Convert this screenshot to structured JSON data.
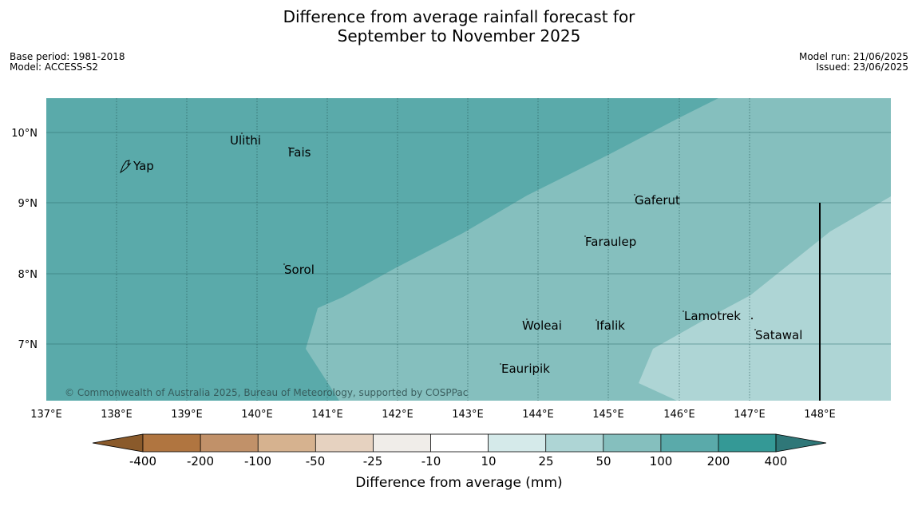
{
  "title": {
    "line1": "Difference from average rainfall forecast for",
    "line2": "September to November 2025"
  },
  "meta": {
    "base_period": "Base period: 1981-2018",
    "model": "Model: ACCESS-S2",
    "model_run": "Model run: 21/06/2025",
    "issued": "Issued: 23/06/2025"
  },
  "map": {
    "lon_labels": [
      "137°E",
      "138°E",
      "139°E",
      "140°E",
      "141°E",
      "142°E",
      "143°E",
      "144°E",
      "145°E",
      "146°E",
      "147°E",
      "148°E"
    ],
    "lat_labels": [
      "10°N",
      "9°N",
      "8°N",
      "7°N"
    ],
    "places": [
      "Ulithi",
      "Fais",
      "Yap",
      "Gaferut",
      "Faraulep",
      "Sorol",
      "Lamotrek",
      "Woleai",
      "Ifalik",
      "Satawal",
      "Eauripik"
    ],
    "copyright": "© Commonwealth of Australia 2025, Bureau of Meteorology, supported by COSPPac",
    "zone_colors": {
      "zone_100_200": "#5aaaaa",
      "zone_50_100": "#85bfbe",
      "zone_25_50": "#aed5d5"
    }
  },
  "legend": {
    "title": "Difference from average (mm)",
    "ticks": [
      "-400",
      "-200",
      "-100",
      "-50",
      "-25",
      "-10",
      "10",
      "25",
      "50",
      "100",
      "200",
      "400"
    ],
    "colors": [
      "#8a5a2b",
      "#b07540",
      "#c19169",
      "#d6b28f",
      "#e6d2c0",
      "#f0ede9",
      "#ffffff",
      "#d5eaea",
      "#aed5d5",
      "#85bfbe",
      "#5aaaaa",
      "#349996",
      "#2f7778"
    ]
  }
}
